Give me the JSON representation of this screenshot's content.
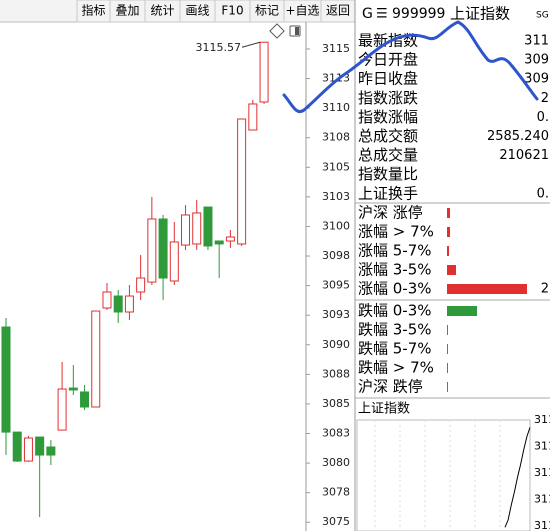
{
  "toolbar": [
    "指标",
    "叠加",
    "统计",
    "画线",
    "F10",
    "标记",
    "+自选",
    "返回"
  ],
  "chart": {
    "type": "candlestick",
    "max_label": "3115.57",
    "up_color": "#e03030",
    "down_color": "#2e9a3a",
    "ylim": [
      3074.26,
      3117.28
    ],
    "yticks": [
      3115,
      {
        "value": 3112.5,
        "label": "3113"
      },
      3110,
      {
        "value": 3107.5,
        "label": "3108"
      },
      3105,
      {
        "value": 3102.5,
        "label": "3103"
      },
      3100,
      {
        "value": 3097.5,
        "label": "3098"
      },
      3095,
      {
        "value": 3092.5,
        "label": "3093"
      },
      3090,
      {
        "value": 3087.5,
        "label": "3088"
      },
      3085,
      {
        "value": 3082.5,
        "label": "3083"
      },
      3080,
      {
        "value": 3077.5,
        "label": "3078"
      },
      3075
    ],
    "candles": [
      {
        "open": 3091.5,
        "high": 3092.26,
        "low": 3080.68,
        "close": 3082.62
      },
      {
        "open": 3082.62,
        "high": 3082.62,
        "low": 3080.1,
        "close": 3080.17
      },
      {
        "open": 3080.17,
        "high": 3082.3,
        "low": 3080.1,
        "close": 3082.12
      },
      {
        "open": 3082.2,
        "high": 3082.2,
        "low": 3075.44,
        "close": 3080.68
      },
      {
        "open": 3081.36,
        "high": 3081.95,
        "low": 3079.84,
        "close": 3080.68
      },
      {
        "open": 3082.79,
        "high": 3088.54,
        "low": 3082.79,
        "close": 3086.26
      },
      {
        "open": 3086.34,
        "high": 3088.29,
        "low": 3085.75,
        "close": 3086.18
      },
      {
        "open": 3086.01,
        "high": 3086.6,
        "low": 3084.48,
        "close": 3084.74
      },
      {
        "open": 3084.74,
        "high": 3092.85,
        "low": 3084.74,
        "close": 3092.85
      },
      {
        "open": 3093.11,
        "high": 3095.22,
        "low": 3092.94,
        "close": 3094.46
      },
      {
        "open": 3094.12,
        "high": 3094.63,
        "low": 3091.84,
        "close": 3092.77
      },
      {
        "open": 3092.77,
        "high": 3095.05,
        "low": 3092.09,
        "close": 3094.12
      },
      {
        "open": 3094.46,
        "high": 3097.59,
        "low": 3093.78,
        "close": 3095.64
      },
      {
        "open": 3095.3,
        "high": 3102.49,
        "low": 3095.05,
        "close": 3100.63
      },
      {
        "open": 3100.63,
        "high": 3100.97,
        "low": 3093.78,
        "close": 3095.64
      },
      {
        "open": 3095.39,
        "high": 3100.38,
        "low": 3095.05,
        "close": 3098.69
      },
      {
        "open": 3098.43,
        "high": 3101.81,
        "low": 3098.01,
        "close": 3100.97
      },
      {
        "open": 3098.52,
        "high": 3102.24,
        "low": 3098.01,
        "close": 3101.14
      },
      {
        "open": 3101.64,
        "high": 3101.64,
        "low": 3098.01,
        "close": 3098.35
      },
      {
        "open": 3098.77,
        "high": 3098.77,
        "low": 3095.64,
        "close": 3098.52
      },
      {
        "open": 3098.77,
        "high": 3099.7,
        "low": 3098.18,
        "close": 3099.11
      },
      {
        "open": 3098.52,
        "high": 3109.08,
        "low": 3098.35,
        "close": 3109.08
      },
      {
        "open": 3108.15,
        "high": 3110.69,
        "low": 3108.15,
        "close": 3110.35
      },
      {
        "open": 3110.52,
        "high": 3115.57,
        "low": 3110.35,
        "close": 3115.57
      }
    ]
  },
  "quote": {
    "header": {
      "flag": "G",
      "code": "999999",
      "name": "上证指数",
      "tag": "SG"
    },
    "rows": [
      {
        "label": "最新指数",
        "value": "311",
        "color": "#e03030"
      },
      {
        "label": "今日开盘",
        "value": "309",
        "color": "#2e9a3a"
      },
      {
        "label": "昨日收盘",
        "value": "309",
        "color": "#000000"
      },
      {
        "label": "指数涨跌",
        "value": "2",
        "color": "#e03030"
      },
      {
        "label": "指数涨幅",
        "value": "0.",
        "color": "#e03030"
      },
      {
        "label": "总成交额",
        "value": "2585.240",
        "color": "#000000"
      },
      {
        "label": "总成交量",
        "value": "210621",
        "color": "#000000"
      },
      {
        "label": "指数量比"
      },
      {
        "label": "上证换手",
        "value": "0.",
        "color": "#000000"
      }
    ]
  },
  "breadth": {
    "rows": [
      {
        "label": "沪深 涨停",
        "value": 3,
        "color": "#e03030"
      },
      {
        "label": "涨幅 > 7%",
        "value": 3,
        "color": "#e03030"
      },
      {
        "label": "涨幅 5-7%",
        "value": 2,
        "color": "#e03030"
      },
      {
        "label": "涨幅 3-5%",
        "value": 9,
        "color": "#e03030"
      },
      {
        "label": "涨幅 0-3%",
        "value": 80,
        "color": "#e03030",
        "count_label": "2"
      },
      {
        "label": "跌幅 0-3%",
        "value": 30,
        "color": "#2e9a3a"
      },
      {
        "label": "跌幅 3-5%",
        "value": 1,
        "color": "#2e9a3a"
      },
      {
        "label": "跌幅 5-7%",
        "value": 1,
        "color": "#2e9a3a"
      },
      {
        "label": "跌幅 > 7%",
        "value": 1,
        "color": "#2e9a3a"
      },
      {
        "label": "沪深 跌停",
        "value": 1,
        "color": "#2e9a3a"
      }
    ]
  },
  "mini_chart": {
    "title": "上证指数",
    "axis_labels": [
      "311",
      "311",
      "311",
      "311",
      "311"
    ],
    "ylim": [
      3110,
      3116
    ],
    "values": [
      3110.2,
      3110.6,
      3111.4,
      3112.1,
      3112.9,
      3113.6,
      3114.4,
      3115.1,
      3115.6
    ]
  }
}
